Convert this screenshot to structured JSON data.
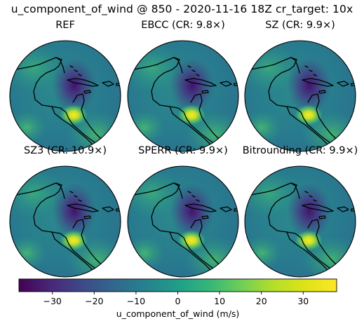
{
  "figure": {
    "suptitle": "u_component_of_wind @ 850 - 2020-11-16 18Z cr_target: 10x",
    "variable": "u_component_of_wind",
    "pressure_level": "850",
    "valid_time": "2020-11-16 18Z",
    "cr_target": "10x"
  },
  "chart_data": {
    "type": "heatmap",
    "projection": "orthographic",
    "colormap": "viridis",
    "panels": [
      {
        "title": "REF",
        "method": "REF",
        "compression_ratio": null
      },
      {
        "title": "EBCC (CR: 9.8×)",
        "method": "EBCC",
        "compression_ratio": 9.8
      },
      {
        "title": "SZ (CR: 9.9×)",
        "method": "SZ",
        "compression_ratio": 9.9
      },
      {
        "title": "SZ3 (CR: 10.9×)",
        "method": "SZ3",
        "compression_ratio": 10.9
      },
      {
        "title": "SPERR (CR: 9.9×)",
        "method": "SPERR",
        "compression_ratio": 9.9
      },
      {
        "title": "Bitrounding (CR: 9.9×)",
        "method": "Bitrounding",
        "compression_ratio": 9.9
      }
    ],
    "colorbar": {
      "label": "u_component_of_wind (m/s)",
      "vmin": -38,
      "vmax": 38,
      "ticks": [
        -30,
        -20,
        -10,
        0,
        10,
        20,
        30
      ],
      "tick_labels": [
        "−30",
        "−20",
        "−10",
        "0",
        "10",
        "20",
        "30"
      ]
    },
    "field_features": [
      {
        "description": "low",
        "value": -25
      },
      {
        "description": "high",
        "value": 33
      }
    ]
  }
}
